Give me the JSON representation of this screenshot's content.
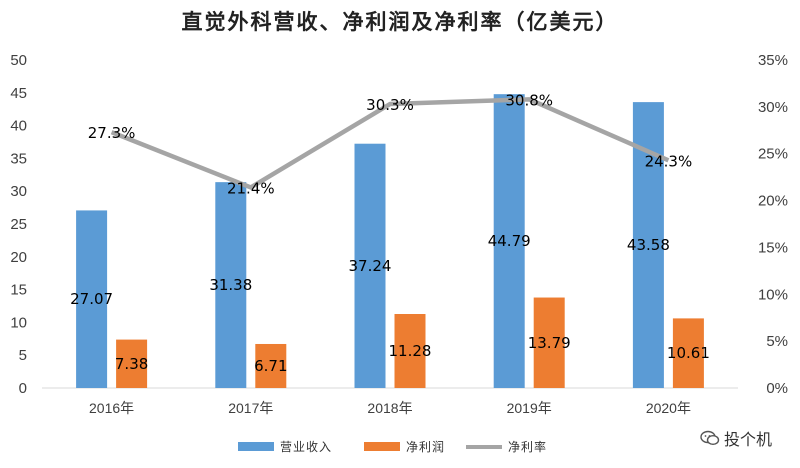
{
  "chart_data": {
    "type": "bar",
    "title": "直觉外科营收、净利润及净利率（亿美元）",
    "categories": [
      "2016年",
      "2017年",
      "2018年",
      "2019年",
      "2020年"
    ],
    "series": [
      {
        "name": "营业收入",
        "type": "bar",
        "axis": "left",
        "color": "#5B9BD5",
        "values": [
          27.07,
          31.38,
          37.24,
          44.79,
          43.58
        ],
        "labels": [
          "27.07",
          "31.38",
          "37.24",
          "44.79",
          "43.58"
        ]
      },
      {
        "name": "净利润",
        "type": "bar",
        "axis": "left",
        "color": "#ED7D31",
        "values": [
          7.38,
          6.71,
          11.28,
          13.79,
          10.61
        ],
        "labels": [
          "7.38",
          "6.71",
          "11.28",
          "13.79",
          "10.61"
        ]
      },
      {
        "name": "净利率",
        "type": "line",
        "axis": "right",
        "color": "#A5A5A5",
        "values": [
          27.3,
          21.4,
          30.3,
          30.8,
          24.3
        ],
        "labels": [
          "27.3%",
          "21.4%",
          "30.3%",
          "30.8%",
          "24.3%"
        ]
      }
    ],
    "left_axis": {
      "ylim": [
        0,
        50
      ],
      "ticks": [
        "0",
        "5",
        "10",
        "15",
        "20",
        "25",
        "30",
        "35",
        "40",
        "45",
        "50"
      ]
    },
    "right_axis": {
      "ylim": [
        0,
        35
      ],
      "ticks": [
        "0%",
        "5%",
        "10%",
        "15%",
        "20%",
        "25%",
        "30%",
        "35%"
      ]
    },
    "grid": false,
    "legend": "bottom"
  },
  "watermark": {
    "text": "投个机",
    "icon": "wechat-icon"
  }
}
